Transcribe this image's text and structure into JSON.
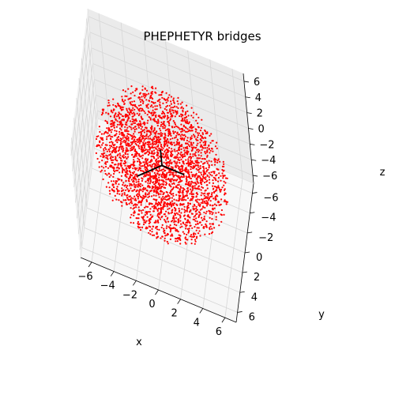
{
  "chart_data": {
    "type": "scatter",
    "projection": "3d",
    "title": "PHEPHETYR bridges",
    "xlabel": "x",
    "ylabel": "y",
    "zlabel": "z",
    "xticks": [
      -6,
      -4,
      -2,
      0,
      2,
      4,
      6
    ],
    "yticks": [
      -6,
      -4,
      -2,
      0,
      2,
      4,
      6
    ],
    "zticks": [
      -6,
      -4,
      -2,
      0,
      2,
      4,
      6
    ],
    "xlim": [
      -7,
      7
    ],
    "ylim": [
      -7,
      7
    ],
    "zlim": [
      -7,
      7
    ],
    "grid": true,
    "series": [
      {
        "marker_color": "#ff0000",
        "distribution": "points filling a sphere of radius about 6 centred at the origin",
        "approx_count": 3000,
        "radius": 6
      }
    ],
    "extra_lines": [
      {
        "color": "#000000",
        "points": [
          [
            0,
            0,
            0
          ],
          [
            -2,
            2,
            0
          ]
        ]
      },
      {
        "color": "#000000",
        "points": [
          [
            0,
            0,
            0
          ],
          [
            2,
            0,
            0
          ]
        ]
      },
      {
        "color": "#000000",
        "points": [
          [
            0,
            0,
            0
          ],
          [
            0,
            0,
            2
          ]
        ]
      }
    ]
  }
}
